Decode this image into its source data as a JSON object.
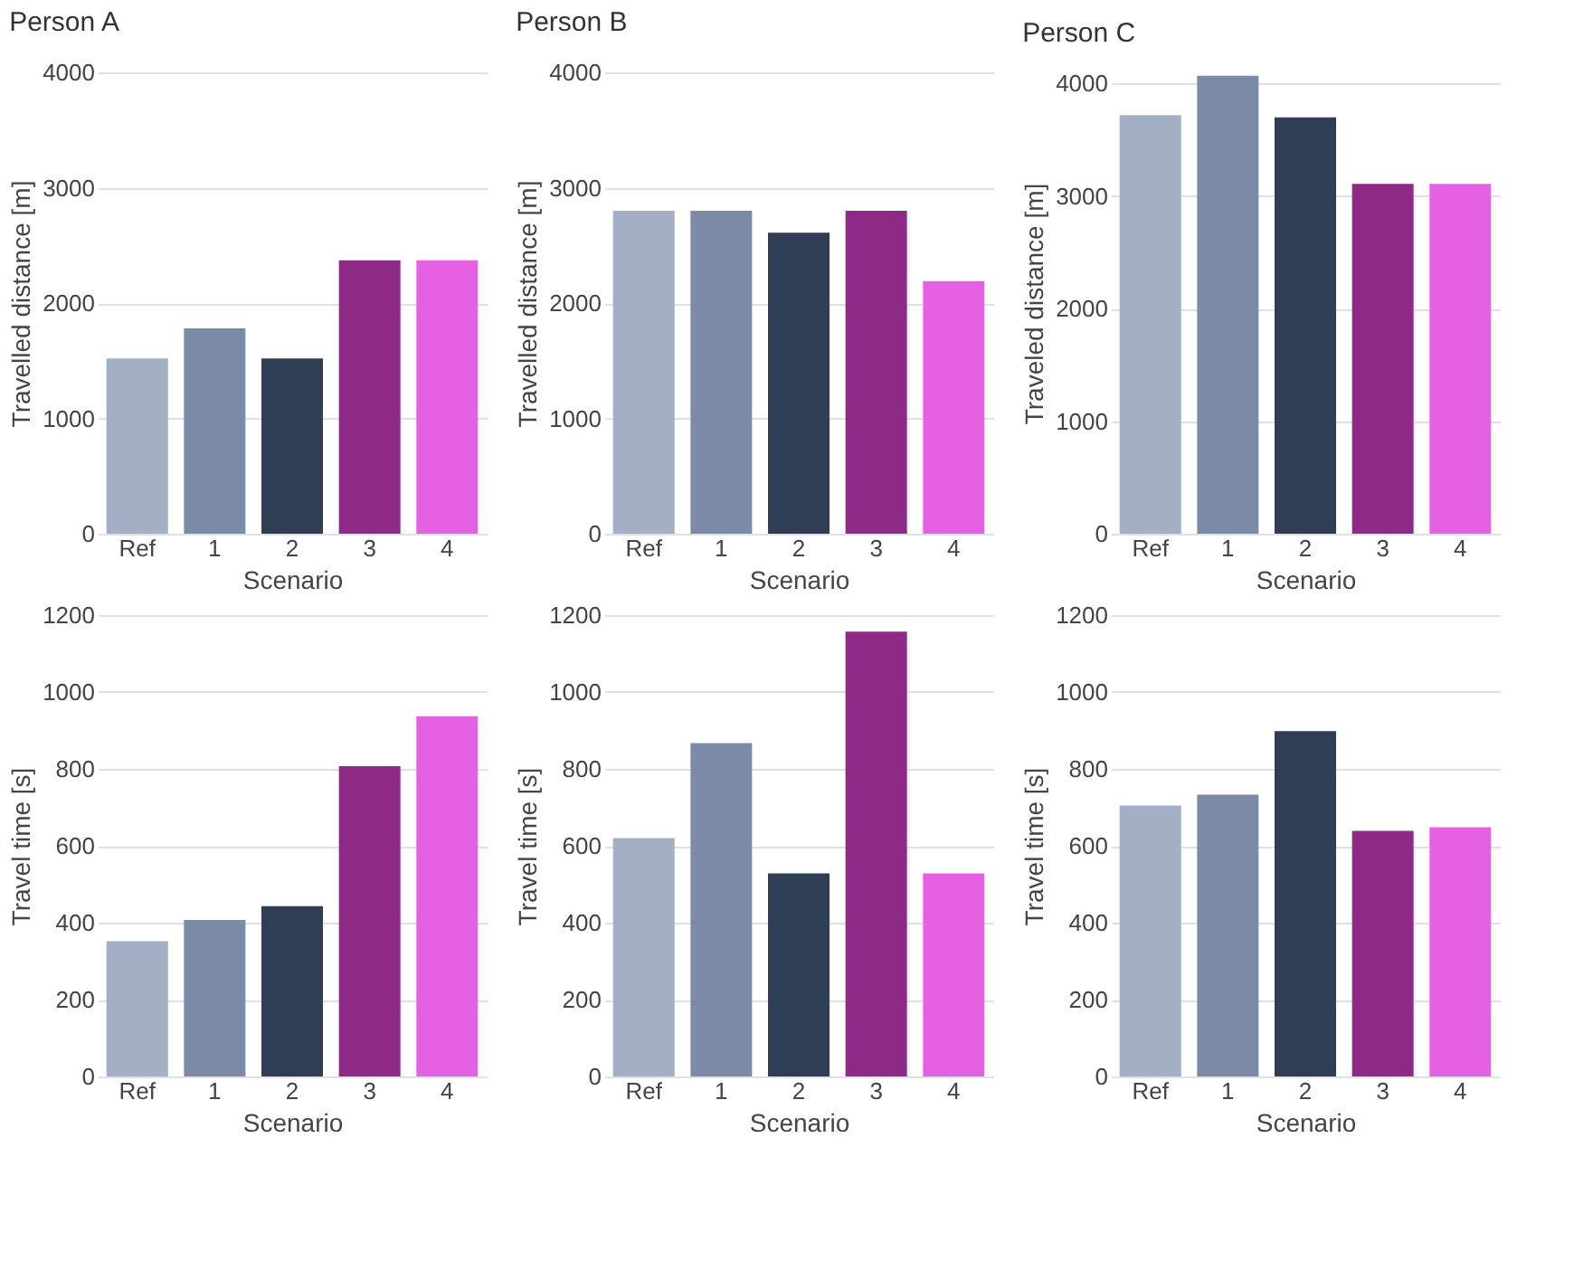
{
  "chart_data": [
    {
      "type": "bar",
      "title": "Person A",
      "xlabel": "Scenario",
      "ylabel": "Travelled distance [m]",
      "categories": [
        "Ref",
        "1",
        "2",
        "3",
        "4"
      ],
      "values": [
        1520,
        1780,
        1520,
        2370,
        2370
      ],
      "colors": [
        "#a3afc4",
        "#7b8aa6",
        "#2f3e55",
        "#8e2a86",
        "#e560e3"
      ],
      "ylim": [
        0,
        4000
      ],
      "yticks": [
        0,
        1000,
        2000,
        3000,
        4000
      ],
      "grid": "y"
    },
    {
      "type": "bar",
      "title": "Person B",
      "xlabel": "Scenario",
      "ylabel": "Travelled distance [m]",
      "categories": [
        "Ref",
        "1",
        "2",
        "3",
        "4"
      ],
      "values": [
        2800,
        2800,
        2610,
        2800,
        2190
      ],
      "colors": [
        "#a3afc4",
        "#7b8aa6",
        "#2f3e55",
        "#8e2a86",
        "#e560e3"
      ],
      "ylim": [
        0,
        4000
      ],
      "yticks": [
        0,
        1000,
        2000,
        3000,
        4000
      ],
      "grid": "y"
    },
    {
      "type": "bar",
      "title": "Person C",
      "xlabel": "Scenario",
      "ylabel": "Traveled distance [m]",
      "categories": [
        "Ref",
        "1",
        "2",
        "3",
        "4"
      ],
      "values": [
        3720,
        4070,
        3700,
        3110,
        3110
      ],
      "colors": [
        "#a3afc4",
        "#7b8aa6",
        "#2f3e55",
        "#8e2a86",
        "#e560e3"
      ],
      "ylim": [
        0,
        4100
      ],
      "yticks": [
        0,
        1000,
        2000,
        3000,
        4000
      ],
      "grid": "y"
    },
    {
      "type": "bar",
      "xlabel": "Scenario",
      "ylabel": "Travel time [s]",
      "categories": [
        "Ref",
        "1",
        "2",
        "3",
        "4"
      ],
      "values": [
        352,
        407,
        443,
        807,
        937
      ],
      "colors": [
        "#a3afc4",
        "#7b8aa6",
        "#2f3e55",
        "#8e2a86",
        "#e560e3"
      ],
      "ylim": [
        0,
        1200
      ],
      "yticks": [
        0,
        200,
        400,
        600,
        800,
        1000,
        1200
      ],
      "grid": "y"
    },
    {
      "type": "bar",
      "xlabel": "Scenario",
      "ylabel": "Travel time [s]",
      "categories": [
        "Ref",
        "1",
        "2",
        "3",
        "4"
      ],
      "values": [
        620,
        867,
        528,
        1157,
        528
      ],
      "colors": [
        "#a3afc4",
        "#7b8aa6",
        "#2f3e55",
        "#8e2a86",
        "#e560e3"
      ],
      "ylim": [
        0,
        1200
      ],
      "yticks": [
        0,
        200,
        400,
        600,
        800,
        1000,
        1200
      ],
      "grid": "y"
    },
    {
      "type": "bar",
      "xlabel": "Scenario",
      "ylabel": "Travel time [s]",
      "categories": [
        "Ref",
        "1",
        "2",
        "3",
        "4"
      ],
      "values": [
        705,
        733,
        898,
        639,
        648
      ],
      "colors": [
        "#a3afc4",
        "#7b8aa6",
        "#2f3e55",
        "#8e2a86",
        "#e560e3"
      ],
      "ylim": [
        0,
        1200
      ],
      "yticks": [
        0,
        200,
        400,
        600,
        800,
        1000,
        1200
      ],
      "grid": "y"
    }
  ]
}
